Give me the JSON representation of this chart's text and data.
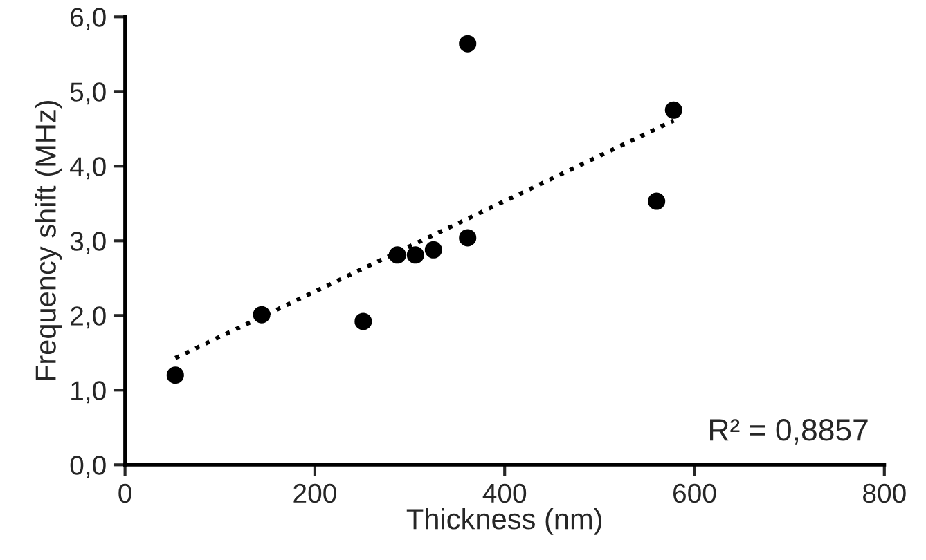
{
  "chart_data": {
    "type": "scatter",
    "xlabel": "Thickness (nm)",
    "ylabel": "Frequency shift (MHz)",
    "xlim": [
      0,
      800
    ],
    "ylim": [
      0,
      6
    ],
    "xticks": [
      0,
      200,
      400,
      600,
      800
    ],
    "yticks": [
      {
        "value": 0,
        "label": "0,0"
      },
      {
        "value": 1,
        "label": "1,0"
      },
      {
        "value": 2,
        "label": "2,0"
      },
      {
        "value": 3,
        "label": "3,0"
      },
      {
        "value": 4,
        "label": "4,0"
      },
      {
        "value": 5,
        "label": "5,0"
      },
      {
        "value": 6,
        "label": "6,0"
      }
    ],
    "marker": "circle",
    "grid": false,
    "legend": false,
    "annotations": [
      "R² = 0,8857"
    ],
    "series": [
      {
        "color": "#000000",
        "x": [
          53,
          144,
          251,
          287,
          306,
          325,
          361,
          361,
          560,
          578
        ],
        "values": [
          1.2,
          2.01,
          1.92,
          2.81,
          2.81,
          2.88,
          3.04,
          5.64,
          3.53,
          4.75
        ]
      },
      {
        "type": "line",
        "color": "#000000",
        "line_style": "dotted",
        "marker": "none",
        "x": [
          53,
          578
        ],
        "values": [
          1.43,
          4.61
        ]
      }
    ]
  }
}
